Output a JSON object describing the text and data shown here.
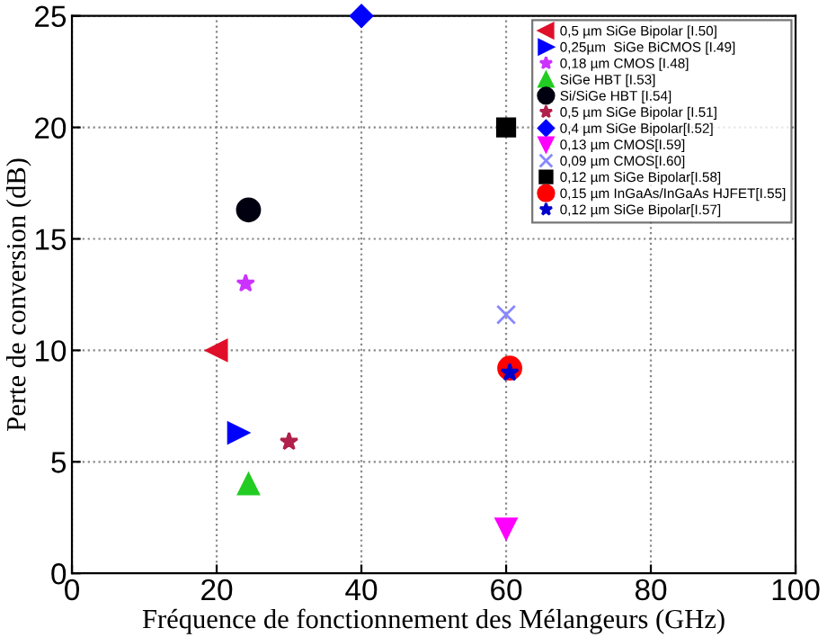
{
  "chart_data": {
    "type": "scatter",
    "xlabel": "Fréquence de fonctionnement des Mélangeurs (GHz)",
    "ylabel": "Perte de conversion (dB)",
    "xlim": [
      0,
      100
    ],
    "ylim": [
      0,
      25
    ],
    "xticks": [
      0,
      20,
      40,
      60,
      80,
      100
    ],
    "yticks": [
      0,
      5,
      10,
      15,
      20,
      25
    ],
    "grid": true,
    "legend": "top right",
    "series": [
      {
        "name": "0,5 µm SiGe Bipolar [I.50]",
        "color": "#e0102a",
        "marker": "triangle-left",
        "x": [
          20
        ],
        "values": [
          10
        ]
      },
      {
        "name": "0,25µm  SiGe BiCMOS [I.49]",
        "color": "#0000ff",
        "marker": "triangle-right",
        "x": [
          23
        ],
        "values": [
          6.3
        ]
      },
      {
        "name": "0,18 µm CMOS [I.48]",
        "color": "#cc33ff",
        "marker": "star",
        "x": [
          24
        ],
        "values": [
          13
        ]
      },
      {
        "name": "SiGe HBT [I.53]",
        "color": "#22cc22",
        "marker": "triangle",
        "x": [
          24.4
        ],
        "values": [
          4
        ]
      },
      {
        "name": "Si/SiGe HBT [I.54]",
        "color": "#000010",
        "marker": "circle",
        "x": [
          24.4
        ],
        "values": [
          16.3
        ]
      },
      {
        "name": "0,5 µm SiGe Bipolar [I.51]",
        "color": "#b0204a",
        "marker": "star",
        "x": [
          30
        ],
        "values": [
          5.9
        ]
      },
      {
        "name": "0,4 µm SiGe Bipolar[I.52]",
        "color": "#0000ff",
        "marker": "diamond",
        "x": [
          40
        ],
        "values": [
          25
        ]
      },
      {
        "name": "0,13 µm CMOS[I.59]",
        "color": "#ff00ff",
        "marker": "triangle-down",
        "x": [
          60
        ],
        "values": [
          2
        ]
      },
      {
        "name": "0,09 µm CMOS[I.60]",
        "color": "#8888ff",
        "marker": "cross",
        "x": [
          60
        ],
        "values": [
          11.6
        ]
      },
      {
        "name": "0,12 µm SiGe Bipolar[I.58]",
        "color": "#000000",
        "marker": "square",
        "x": [
          60
        ],
        "values": [
          20
        ]
      },
      {
        "name": "0,15 µm InGaAs/InGaAs HJFET[I.55]",
        "color": "#ff0000",
        "marker": "circle",
        "x": [
          60.5
        ],
        "values": [
          9.2
        ]
      },
      {
        "name": "0,12 µm SiGe Bipolar[I.57]",
        "color": "#0000cc",
        "marker": "star",
        "x": [
          60.5
        ],
        "values": [
          9
        ]
      }
    ]
  }
}
